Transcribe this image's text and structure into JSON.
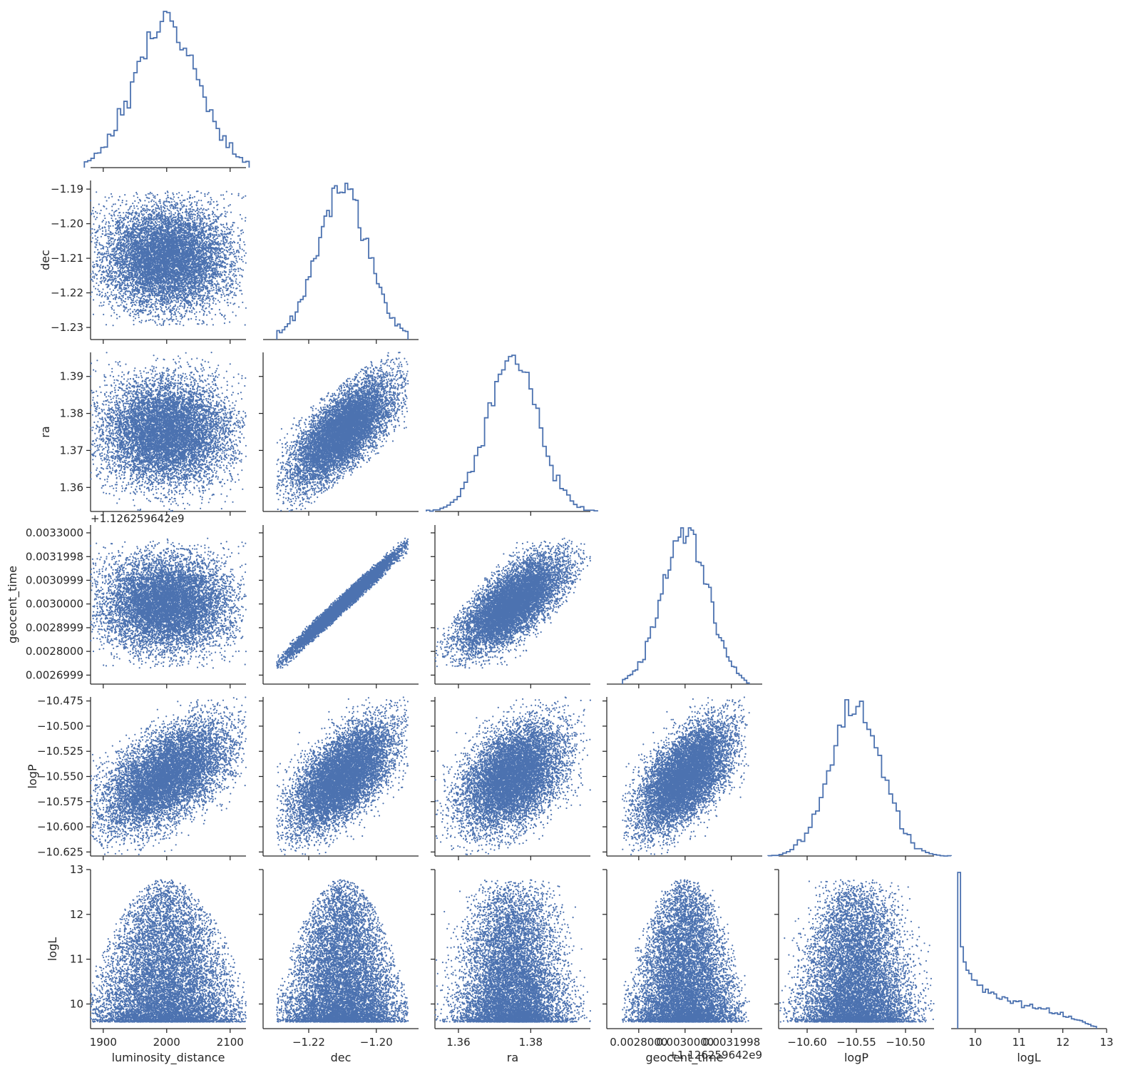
{
  "chart_data": {
    "type": "corner",
    "description_of_panels": "lower-triangle pair plot: step histograms on diagonal, scatter plots below",
    "colors": {
      "accent": "#4c72b0",
      "axis": "#262626"
    },
    "grid": false,
    "variables": [
      {
        "name": "luminosity_distance",
        "label": "luminosity_distance",
        "range": [
          1880,
          2125
        ],
        "mean": 2000,
        "std": 50,
        "dist": "normal",
        "ticks": [
          1900,
          2000,
          2100
        ],
        "tick_labels": [
          "1900",
          "2000",
          "2100"
        ],
        "offset_text": ""
      },
      {
        "name": "dec",
        "label": "dec",
        "range": [
          -1.2335,
          -1.1875
        ],
        "mean": -1.21,
        "std": 0.0075,
        "dist": "normal",
        "ticks": [
          -1.23,
          -1.22,
          -1.21,
          -1.2,
          -1.19
        ],
        "tick_labels": [
          "−1.23",
          "−1.22",
          "−1.21",
          "−1.20",
          "−1.19"
        ],
        "x_ticks": [
          -1.22,
          -1.2
        ],
        "x_tick_labels": [
          "−1.22",
          "−1.20"
        ],
        "offset_text": ""
      },
      {
        "name": "ra",
        "label": "ra",
        "range": [
          1.3535,
          1.3965
        ],
        "mean": 1.375,
        "std": 0.0072,
        "dist": "normal",
        "ticks": [
          1.36,
          1.37,
          1.38,
          1.39
        ],
        "tick_labels": [
          "1.36",
          "1.37",
          "1.38",
          "1.39"
        ],
        "x_ticks": [
          1.36,
          1.38
        ],
        "x_tick_labels": [
          "1.36",
          "1.38"
        ],
        "offset_text": ""
      },
      {
        "name": "geocent_time",
        "label": "geocent_time",
        "range": [
          0.002662,
          0.003333
        ],
        "mean": 0.003,
        "std": 0.0001,
        "dist": "normal",
        "ticks": [
          0.0026999,
          0.0028,
          0.0028999,
          0.003,
          0.0030999,
          0.0031998,
          0.0033
        ],
        "tick_labels": [
          "0.0026999",
          "0.0028000",
          "0.0028999",
          "0.0030000",
          "0.0030999",
          "0.0031998",
          "0.0033000"
        ],
        "x_ticks": [
          0.0028,
          0.003,
          0.0031998
        ],
        "x_tick_labels": [
          "0.0028000",
          "0.0030000",
          "0.0031998"
        ],
        "offset_text": "+1.126259642e9",
        "x_offset_text": "+1.126259642e9"
      },
      {
        "name": "logP",
        "label": "logP",
        "range": [
          -10.629,
          -10.471
        ],
        "mean": -10.55,
        "std": 0.027,
        "dist": "normal",
        "ticks": [
          -10.625,
          -10.6,
          -10.575,
          -10.55,
          -10.525,
          -10.5,
          -10.475
        ],
        "tick_labels": [
          "−10.625",
          "−10.600",
          "−10.575",
          "−10.550",
          "−10.525",
          "−10.500",
          "−10.475"
        ],
        "x_ticks": [
          -10.6,
          -10.55,
          -10.5
        ],
        "x_tick_labels": [
          "−10.60",
          "−10.55",
          "−10.50"
        ],
        "offset_text": ""
      },
      {
        "name": "logL",
        "label": "logL",
        "range": [
          9.45,
          13.0
        ],
        "min": 9.6,
        "max": 12.8,
        "dist": "skewed",
        "ticks": [
          10,
          11,
          12,
          13
        ],
        "tick_labels": [
          "10",
          "11",
          "12",
          "13"
        ],
        "offset_text": ""
      }
    ],
    "correlations": [
      [
        1.0,
        0.0,
        0.0,
        0.0,
        0.55,
        0.0
      ],
      [
        0.0,
        1.0,
        0.7,
        0.985,
        0.7,
        0.0
      ],
      [
        0.0,
        0.7,
        1.0,
        0.7,
        0.45,
        0.0
      ],
      [
        0.0,
        0.985,
        0.7,
        1.0,
        0.7,
        0.0
      ],
      [
        0.55,
        0.7,
        0.45,
        0.7,
        1.0,
        0.0
      ],
      [
        0.0,
        0.0,
        0.0,
        0.0,
        0.0,
        1.0
      ]
    ],
    "n_samples": 9000,
    "hist_bins": 50
  }
}
